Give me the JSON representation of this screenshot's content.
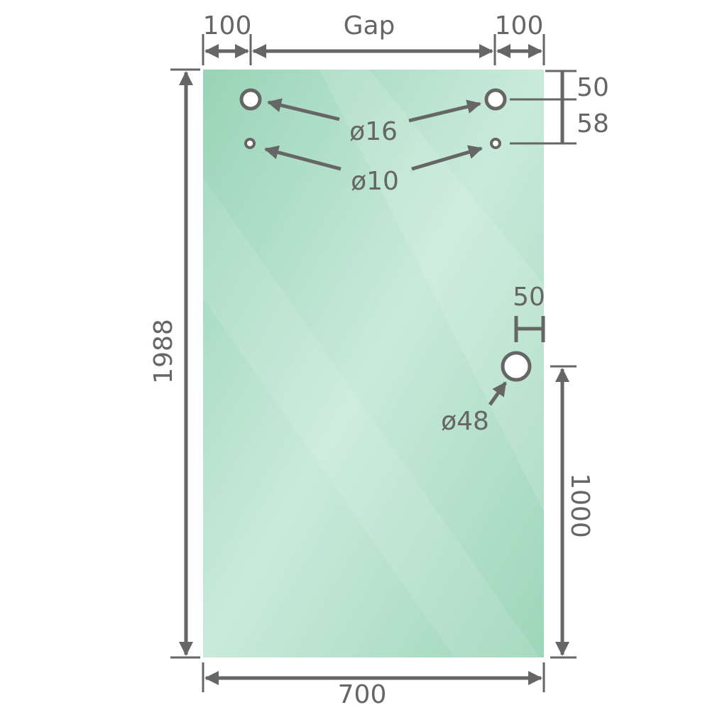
{
  "colors": {
    "glass_edge": "#9ed6b9",
    "glass_center": "#c9eadb",
    "dimension": "#666666"
  },
  "dimensions": {
    "top_left_offset": "100",
    "gap": "Gap",
    "top_right_offset": "100",
    "top_hole_offset": "50",
    "hole_spacing": "58",
    "height": "1988",
    "width": "700",
    "handle_edge_offset": "50",
    "handle_height": "1000"
  },
  "holes": {
    "large_top": "ø16",
    "small_top": "ø10",
    "handle": "ø48"
  }
}
